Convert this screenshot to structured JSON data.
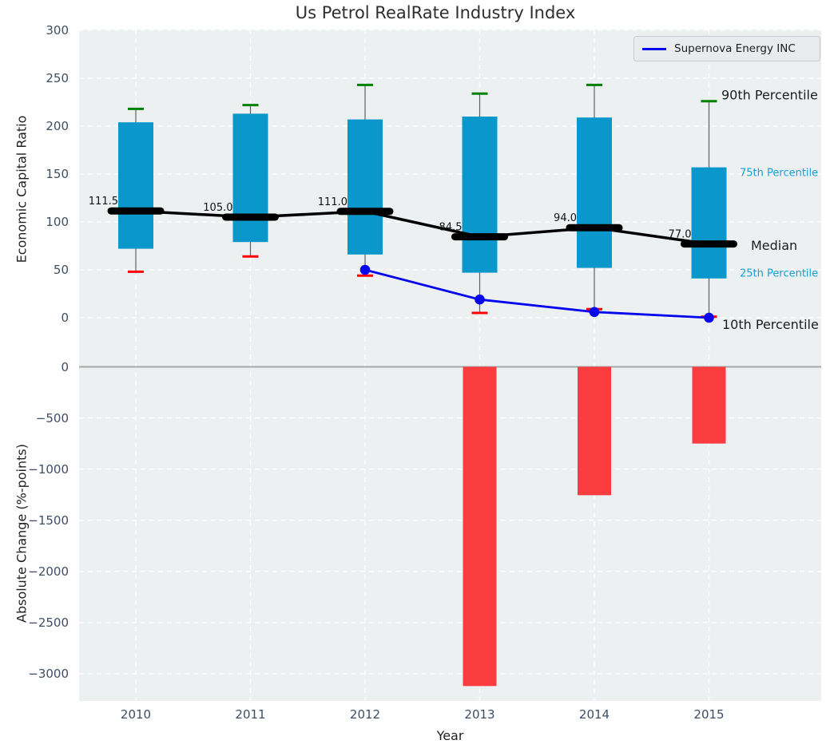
{
  "title": "Us Petrol RealRate Industry Index",
  "legend": {
    "label": "Supernova Energy INC"
  },
  "colors": {
    "plot_background": "#edf0f1",
    "box_fill": "#0a98cc",
    "change_bar": "#fb3c3e",
    "p90_cap": "#008000",
    "p10_cap": "#ff0000",
    "median": "#000000",
    "company_line": "#0404ee",
    "whisker": "#606060",
    "gridline": "#ffffff",
    "zero_line": "#a8a8a8",
    "tick_text": "#3e4e63",
    "percentile_label_teal": "#189fd6",
    "annotation_text": "#1c1c1c"
  },
  "axes": {
    "xlabel": "Year",
    "x_ticklabels": [
      "2010",
      "2011",
      "2012",
      "2013",
      "2014",
      "2015"
    ],
    "top": {
      "ylabel": "Economic Capital Ratio",
      "yticks": [
        300,
        250,
        200,
        150,
        100,
        50,
        0
      ],
      "ytick_labels": [
        "300",
        "250",
        "200",
        "150",
        "100",
        "50",
        "0"
      ],
      "ylim": [
        -30,
        302
      ]
    },
    "bottom": {
      "ylabel": "Absolute Change (%-points)",
      "yticks": [
        0,
        -500,
        -1000,
        -1500,
        -2000,
        -2500,
        -3000
      ],
      "ytick_labels": [
        "0",
        "−500",
        "−1000",
        "−1500",
        "−2000",
        "−2500",
        "−3000"
      ],
      "ylim": [
        180,
        -3270
      ]
    }
  },
  "annotations": {
    "median_value_labels": [
      "111.5",
      "105.0",
      "111.0",
      "84.5",
      "94.0",
      "77.0"
    ],
    "right_labels": [
      {
        "text": "90th Percentile",
        "value": 232,
        "x": 804,
        "size": 16,
        "color": "#1c1c1c"
      },
      {
        "text": "75th Percentile",
        "value": 152,
        "x": 827,
        "size": 13,
        "color": "#189fd6"
      },
      {
        "text": "Median",
        "value": 75,
        "x": 841,
        "size": 16,
        "color": "#1c1c1c"
      },
      {
        "text": "25th Percentile",
        "value": 47,
        "x": 827,
        "size": 13,
        "color": "#189fd6"
      },
      {
        "text": "10th Percentile",
        "value": -7.5,
        "x": 805,
        "size": 16,
        "color": "#1c1c1c"
      }
    ]
  },
  "chart_data": [
    {
      "type": "box-percentile",
      "panel": "top",
      "title": "Us Petrol RealRate Industry Index",
      "xlabel": "Year",
      "ylabel": "Economic Capital Ratio",
      "ylim": [
        -30,
        302
      ],
      "grid": true,
      "categories": [
        2010,
        2011,
        2012,
        2013,
        2014,
        2015
      ],
      "series": [
        {
          "name": "90th Percentile",
          "values": [
            218,
            222,
            243,
            234,
            243,
            226
          ]
        },
        {
          "name": "75th Percentile",
          "values": [
            204,
            213,
            207,
            210,
            209,
            157
          ]
        },
        {
          "name": "Median",
          "values": [
            111.5,
            105.0,
            111.0,
            84.5,
            94.0,
            77.0
          ]
        },
        {
          "name": "25th Percentile",
          "values": [
            72,
            79,
            66,
            47,
            52,
            41
          ]
        },
        {
          "name": "10th Percentile",
          "values": [
            48,
            64,
            44,
            5,
            9,
            1
          ]
        },
        {
          "name": "Supernova Energy INC",
          "values": [
            null,
            null,
            50,
            19,
            6,
            0
          ]
        }
      ],
      "legend_position": "upper right"
    },
    {
      "type": "bar",
      "panel": "bottom",
      "ylabel": "Absolute Change (%-points)",
      "ylim": [
        180,
        -3270
      ],
      "grid": true,
      "categories": [
        2010,
        2011,
        2012,
        2013,
        2014,
        2015
      ],
      "values": [
        null,
        null,
        null,
        -3120,
        -1255,
        -750
      ]
    }
  ]
}
